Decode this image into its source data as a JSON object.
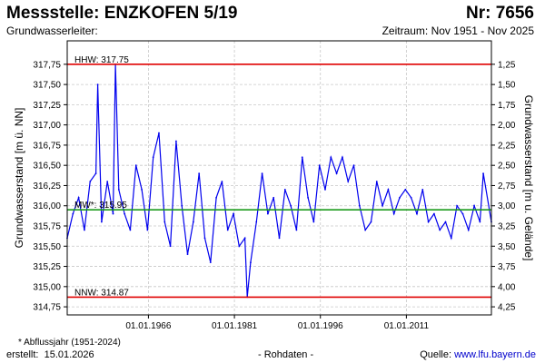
{
  "header": {
    "station_title": "Messstelle: ENZKOFEN 5/19",
    "station_number": "Nr: 7656",
    "aquifer_label": "Grundwasserleiter:",
    "period": "Zeitraum: Nov 1951 - Nov 2025"
  },
  "footer": {
    "footnote": "* Abflussjahr (1951-2024)",
    "created_label": "erstellt:",
    "created_date": "15.01.2026",
    "data_type": "- Rohdaten -",
    "source_label": "Quelle:",
    "source_url": "www.lfu.bayern.de"
  },
  "colors": {
    "series": "#0000ee",
    "hhw_line": "#e00000",
    "mw_line": "#1a9a1a",
    "nnw_line": "#e00000",
    "grid": "#c8c8c8"
  },
  "chart_data": {
    "type": "line",
    "ylabel": "Grundwasserstand [m ü. NN]",
    "y2label": "Grundwasserstand [m u. Gelände]",
    "ylim": [
      314.65,
      318.04
    ],
    "y_ticks": [
      "317,75",
      "317,50",
      "317,25",
      "317,00",
      "316,75",
      "316,50",
      "316,25",
      "316,00",
      "315,75",
      "315,50",
      "315,25",
      "315,00",
      "314,75"
    ],
    "y2_ticks": [
      "1,25",
      "1,50",
      "1,75",
      "2,00",
      "2,25",
      "2,50",
      "2,75",
      "3,00",
      "3,25",
      "3,50",
      "3,75",
      "4,00",
      "4,25"
    ],
    "ground_level": 319.0,
    "xlim": [
      "1951-11-01",
      "2025-11-01"
    ],
    "x_ticks": [
      "01.01.1966",
      "01.01.1981",
      "01.01.1996",
      "01.01.2011"
    ],
    "grid": true,
    "reference_lines": [
      {
        "label": "HHW: 317.75",
        "value": 317.75
      },
      {
        "label": "MW*: 315.95",
        "value": 315.95
      },
      {
        "label": "NNW: 314.87",
        "value": 314.87
      }
    ],
    "series": [
      {
        "x": [
          "1951-11-01",
          "1952-11-01",
          "1953-11-01",
          "1954-11-01",
          "1955-11-01",
          "1956-11-01",
          "1957-03-01",
          "1957-11-01",
          "1958-11-01",
          "1959-11-01",
          "1960-04-01",
          "1960-11-01",
          "1961-11-01",
          "1962-11-01",
          "1963-11-01",
          "1964-11-01",
          "1965-11-01",
          "1966-11-01",
          "1967-11-01",
          "1968-11-01",
          "1969-11-01",
          "1970-11-01",
          "1971-11-01",
          "1972-11-01",
          "1973-11-01",
          "1974-11-01",
          "1975-11-01",
          "1976-11-01",
          "1977-11-01",
          "1978-11-01",
          "1979-11-01",
          "1980-11-01",
          "1981-11-01",
          "1982-11-01",
          "1983-04-01",
          "1983-11-01",
          "1984-11-01",
          "1985-11-01",
          "1986-11-01",
          "1987-11-01",
          "1988-11-01",
          "1989-11-01",
          "1990-11-01",
          "1991-11-01",
          "1992-11-01",
          "1993-11-01",
          "1994-11-01",
          "1995-11-01",
          "1996-11-01",
          "1997-11-01",
          "1998-11-01",
          "1999-11-01",
          "2000-11-01",
          "2001-11-01",
          "2002-11-01",
          "2003-11-01",
          "2004-11-01",
          "2005-11-01",
          "2006-11-01",
          "2007-11-01",
          "2008-11-01",
          "2009-11-01",
          "2010-11-01",
          "2011-11-01",
          "2012-11-01",
          "2013-11-01",
          "2014-11-01",
          "2015-11-01",
          "2016-11-01",
          "2017-11-01",
          "2018-11-01",
          "2019-11-01",
          "2020-11-01",
          "2021-11-01",
          "2022-11-01",
          "2023-11-01",
          "2024-06-01",
          "2025-11-01"
        ],
        "values": [
          315.6,
          315.9,
          316.1,
          315.7,
          316.3,
          316.4,
          317.5,
          315.8,
          316.3,
          315.9,
          317.75,
          316.2,
          315.9,
          315.7,
          316.5,
          316.2,
          315.7,
          316.6,
          316.9,
          315.8,
          315.5,
          316.8,
          316.0,
          315.4,
          315.8,
          316.4,
          315.6,
          315.3,
          316.1,
          316.3,
          315.7,
          315.9,
          315.5,
          315.6,
          314.87,
          315.3,
          315.8,
          316.4,
          315.9,
          316.1,
          315.6,
          316.2,
          316.0,
          315.7,
          316.6,
          316.1,
          315.8,
          316.5,
          316.2,
          316.6,
          316.4,
          316.6,
          316.3,
          316.5,
          316.0,
          315.7,
          315.8,
          316.3,
          316.0,
          316.2,
          315.9,
          316.1,
          316.2,
          316.1,
          315.9,
          316.2,
          315.8,
          315.9,
          315.7,
          315.8,
          315.6,
          316.0,
          315.9,
          315.7,
          316.0,
          315.8,
          316.4,
          315.8
        ]
      }
    ]
  }
}
